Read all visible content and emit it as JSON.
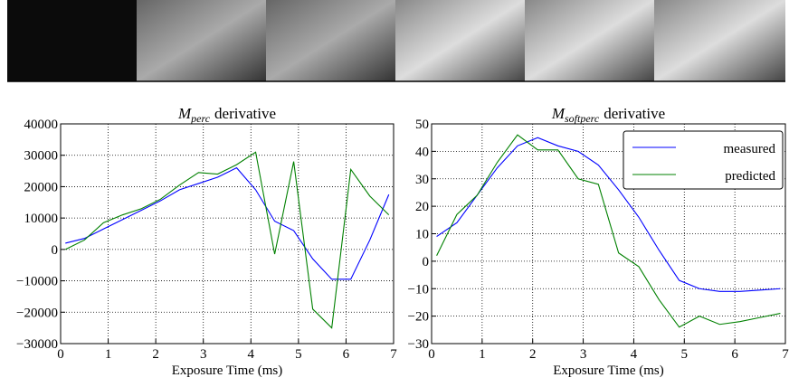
{
  "chart_data": [
    {
      "type": "line",
      "title": {
        "main": "M",
        "sub": "perc",
        "rest": "derivative"
      },
      "x_label": "Exposure Time (ms)",
      "x": [
        0.1,
        0.5,
        0.9,
        1.3,
        1.7,
        2.1,
        2.5,
        2.9,
        3.3,
        3.7,
        4.1,
        4.5,
        4.9,
        5.3,
        5.7,
        6.1,
        6.5,
        6.9
      ],
      "series": [
        {
          "color": "#0000ff",
          "values": [
            2000,
            3500,
            6500,
            9500,
            12500,
            15500,
            19000,
            21000,
            23000,
            26000,
            19000,
            9000,
            6000,
            -3000,
            -9500,
            -9500,
            3000,
            17500
          ]
        },
        {
          "color": "#008000",
          "values": [
            0,
            3000,
            8500,
            11000,
            13000,
            16000,
            20500,
            24500,
            24000,
            27000,
            31000,
            -1500,
            28000,
            -19000,
            -25000,
            25500,
            17000,
            11000
          ]
        }
      ],
      "xlim": [
        0,
        7
      ],
      "xticks": [
        0,
        1,
        2,
        3,
        4,
        5,
        6,
        7
      ],
      "ylim": [
        -30000,
        40000
      ],
      "yticks": [
        {
          "value": -30000,
          "label": "−30000"
        },
        {
          "value": -20000,
          "label": "−20000"
        },
        {
          "value": -10000,
          "label": "−10000"
        },
        0,
        10000,
        20000,
        30000,
        40000
      ],
      "grid": true,
      "legend": false
    },
    {
      "type": "line",
      "title": {
        "main": "M",
        "sub": "softperc",
        "rest": "derivative"
      },
      "x_label": "Exposure Time (ms)",
      "x": [
        0.1,
        0.5,
        0.9,
        1.3,
        1.7,
        2.1,
        2.5,
        2.9,
        3.3,
        3.7,
        4.1,
        4.5,
        4.9,
        5.3,
        5.7,
        6.1,
        6.5,
        6.9
      ],
      "series": [
        {
          "name": "measured",
          "color": "#0000ff",
          "values": [
            9,
            14,
            24,
            34,
            42,
            45,
            42,
            40,
            35,
            26,
            16,
            4,
            -7,
            -10,
            -11,
            -11,
            -10.5,
            -10
          ]
        },
        {
          "name": "predicted",
          "color": "#008000",
          "values": [
            2,
            17,
            24,
            36,
            46,
            40.5,
            40.5,
            30,
            28,
            3,
            -2,
            -14,
            -24,
            -20,
            -23,
            -22,
            -20.5,
            -19
          ]
        }
      ],
      "xlim": [
        0,
        7
      ],
      "xticks": [
        0,
        1,
        2,
        3,
        4,
        5,
        6,
        7
      ],
      "ylim": [
        -30,
        50
      ],
      "yticks": [
        {
          "value": -30,
          "label": "−30"
        },
        {
          "value": -20,
          "label": "−20"
        },
        {
          "value": -10,
          "label": "−10"
        },
        0,
        10,
        20,
        30,
        40,
        50
      ],
      "grid": true,
      "legend": "upper right"
    }
  ]
}
